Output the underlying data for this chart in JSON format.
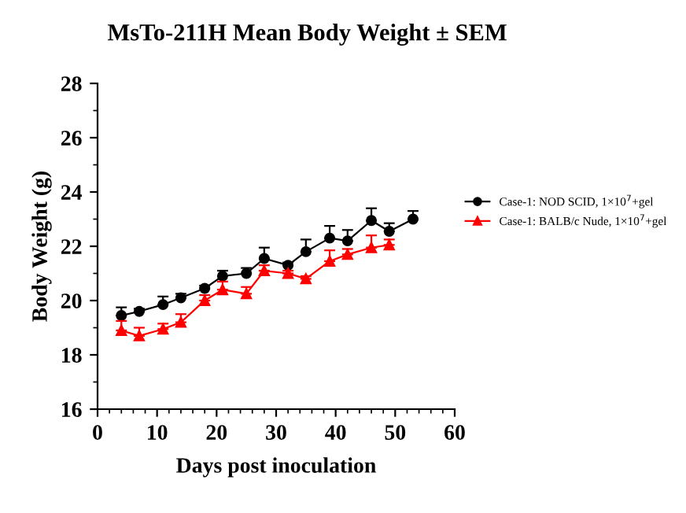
{
  "chart_data": {
    "type": "line",
    "title": "MsTo-211H Mean Body Weight ± SEM",
    "xlabel": "Days post inoculation",
    "ylabel": "Body Weight (g)",
    "xlim": [
      0,
      60
    ],
    "xticks": [
      0,
      10,
      20,
      30,
      40,
      50,
      60
    ],
    "ylim": [
      16,
      28
    ],
    "yticks": [
      16,
      18,
      20,
      22,
      24,
      26,
      28
    ],
    "grid": false,
    "legend": "right",
    "series": [
      {
        "name": "Case-1: NOD SCID, 1×10$^{7}$+gel",
        "color": "#000000",
        "marker": "circle",
        "x": [
          4,
          7,
          11,
          14,
          18,
          21,
          25,
          28,
          32,
          35,
          39,
          42,
          46,
          49,
          53
        ],
        "values": [
          19.45,
          19.6,
          19.85,
          20.1,
          20.45,
          20.9,
          21.0,
          21.55,
          21.3,
          21.8,
          22.3,
          22.2,
          22.95,
          22.55,
          23.0
        ],
        "errors": [
          [
            19.45,
            19.75
          ],
          [
            19.6,
            19.7
          ],
          [
            19.85,
            20.15
          ],
          [
            20.1,
            20.25
          ],
          [
            20.45,
            20.55
          ],
          [
            20.9,
            21.1
          ],
          [
            21.0,
            21.2
          ],
          [
            21.55,
            21.95
          ],
          [
            21.3,
            21.4
          ],
          [
            21.8,
            22.25
          ],
          [
            22.3,
            22.75
          ],
          [
            22.2,
            22.6
          ],
          [
            22.95,
            23.4
          ],
          [
            22.55,
            22.85
          ],
          [
            23.0,
            23.3
          ]
        ]
      },
      {
        "name": "Case-1: BALB/c Nude, 1×10$^{7}$+gel",
        "color": "#ff0000",
        "marker": "triangle",
        "x": [
          4,
          7,
          11,
          14,
          18,
          21,
          25,
          28,
          32,
          35,
          39,
          42,
          46,
          49
        ],
        "values": [
          18.9,
          18.7,
          18.95,
          19.2,
          20.0,
          20.4,
          20.25,
          21.1,
          21.0,
          20.8,
          21.45,
          21.7,
          21.95,
          22.05
        ],
        "errors": [
          [
            18.9,
            19.25
          ],
          [
            18.7,
            19.0
          ],
          [
            18.95,
            19.15
          ],
          [
            19.2,
            19.5
          ],
          [
            20.0,
            20.2
          ],
          [
            20.4,
            20.7
          ],
          [
            20.25,
            20.5
          ],
          [
            21.1,
            21.3
          ],
          [
            21.0,
            21.1
          ],
          [
            20.8,
            20.9
          ],
          [
            21.45,
            21.85
          ],
          [
            21.7,
            21.9
          ],
          [
            21.95,
            22.4
          ],
          [
            22.05,
            22.25
          ]
        ]
      }
    ]
  }
}
